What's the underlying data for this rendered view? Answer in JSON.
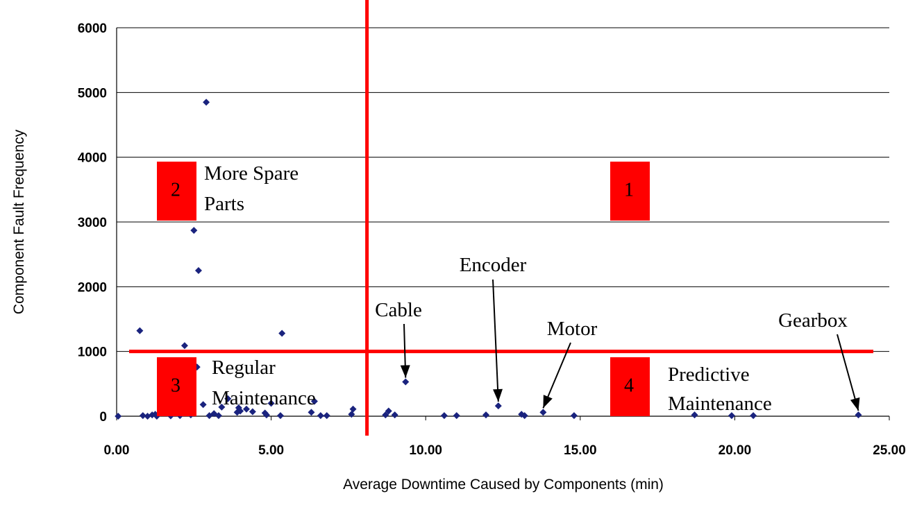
{
  "chart_data": {
    "type": "scatter",
    "xlabel": "Average Downtime Caused by Components (min)",
    "ylabel": "Component Fault Frequency",
    "xlim": [
      0,
      25
    ],
    "ylim": [
      0,
      6000
    ],
    "x_ticks": [
      "0.00",
      "5.00",
      "10.00",
      "15.00",
      "20.00",
      "25.00"
    ],
    "y_ticks": [
      "0",
      "1000",
      "2000",
      "3000",
      "4000",
      "5000",
      "6000"
    ],
    "grid": "horizontal",
    "marker_color": "#1a237e",
    "threshold_color": "#ff0000",
    "thresholds": {
      "x": 8.1,
      "y": 1000
    },
    "points": [
      {
        "x": 0.05,
        "y": 0
      },
      {
        "x": 0.75,
        "y": 1320
      },
      {
        "x": 0.85,
        "y": 10
      },
      {
        "x": 1.0,
        "y": 0
      },
      {
        "x": 1.15,
        "y": 20
      },
      {
        "x": 1.25,
        "y": 30
      },
      {
        "x": 1.3,
        "y": 0
      },
      {
        "x": 1.45,
        "y": 560
      },
      {
        "x": 1.6,
        "y": 200
      },
      {
        "x": 1.75,
        "y": 5
      },
      {
        "x": 2.0,
        "y": 560
      },
      {
        "x": 2.05,
        "y": 10
      },
      {
        "x": 2.2,
        "y": 1090
      },
      {
        "x": 2.4,
        "y": 20
      },
      {
        "x": 2.5,
        "y": 2870
      },
      {
        "x": 2.6,
        "y": 760
      },
      {
        "x": 2.65,
        "y": 2250
      },
      {
        "x": 2.8,
        "y": 180
      },
      {
        "x": 2.9,
        "y": 4850
      },
      {
        "x": 3.0,
        "y": 10
      },
      {
        "x": 3.15,
        "y": 40
      },
      {
        "x": 3.3,
        "y": 10
      },
      {
        "x": 3.4,
        "y": 140
      },
      {
        "x": 3.6,
        "y": 270
      },
      {
        "x": 3.9,
        "y": 60
      },
      {
        "x": 3.95,
        "y": 130
      },
      {
        "x": 4.0,
        "y": 80
      },
      {
        "x": 4.2,
        "y": 110
      },
      {
        "x": 4.4,
        "y": 70
      },
      {
        "x": 4.8,
        "y": 50
      },
      {
        "x": 4.85,
        "y": 20
      },
      {
        "x": 5.0,
        "y": 200
      },
      {
        "x": 5.3,
        "y": 10
      },
      {
        "x": 5.35,
        "y": 1280
      },
      {
        "x": 6.3,
        "y": 60
      },
      {
        "x": 6.4,
        "y": 230
      },
      {
        "x": 6.6,
        "y": 10
      },
      {
        "x": 6.8,
        "y": 10
      },
      {
        "x": 7.6,
        "y": 30
      },
      {
        "x": 7.65,
        "y": 110
      },
      {
        "x": 8.7,
        "y": 20
      },
      {
        "x": 8.8,
        "y": 80
      },
      {
        "x": 9.0,
        "y": 20
      },
      {
        "x": 9.35,
        "y": 530
      },
      {
        "x": 10.6,
        "y": 10
      },
      {
        "x": 11.0,
        "y": 10
      },
      {
        "x": 11.95,
        "y": 20
      },
      {
        "x": 12.35,
        "y": 160
      },
      {
        "x": 13.1,
        "y": 30
      },
      {
        "x": 13.2,
        "y": 10
      },
      {
        "x": 13.8,
        "y": 60
      },
      {
        "x": 14.8,
        "y": 10
      },
      {
        "x": 18.7,
        "y": 20
      },
      {
        "x": 19.9,
        "y": 10
      },
      {
        "x": 20.6,
        "y": 10
      },
      {
        "x": 24.0,
        "y": 20
      }
    ],
    "quadrants": [
      {
        "number": "2",
        "label_lines": [
          "More  Spare",
          "Parts"
        ]
      },
      {
        "number": "1",
        "label_lines": []
      },
      {
        "number": "3",
        "label_lines": [
          "Regular",
          "Maintenance"
        ]
      },
      {
        "number": "4",
        "label_lines": [
          "Predictive",
          "Maintenance"
        ]
      }
    ],
    "annotations": [
      {
        "text": "Cable",
        "target": {
          "x": 9.35,
          "y": 530
        }
      },
      {
        "text": "Encoder",
        "target": {
          "x": 12.35,
          "y": 160
        }
      },
      {
        "text": "Motor",
        "target": {
          "x": 13.8,
          "y": 60
        }
      },
      {
        "text": "Gearbox",
        "target": {
          "x": 24.0,
          "y": 20
        }
      }
    ]
  }
}
